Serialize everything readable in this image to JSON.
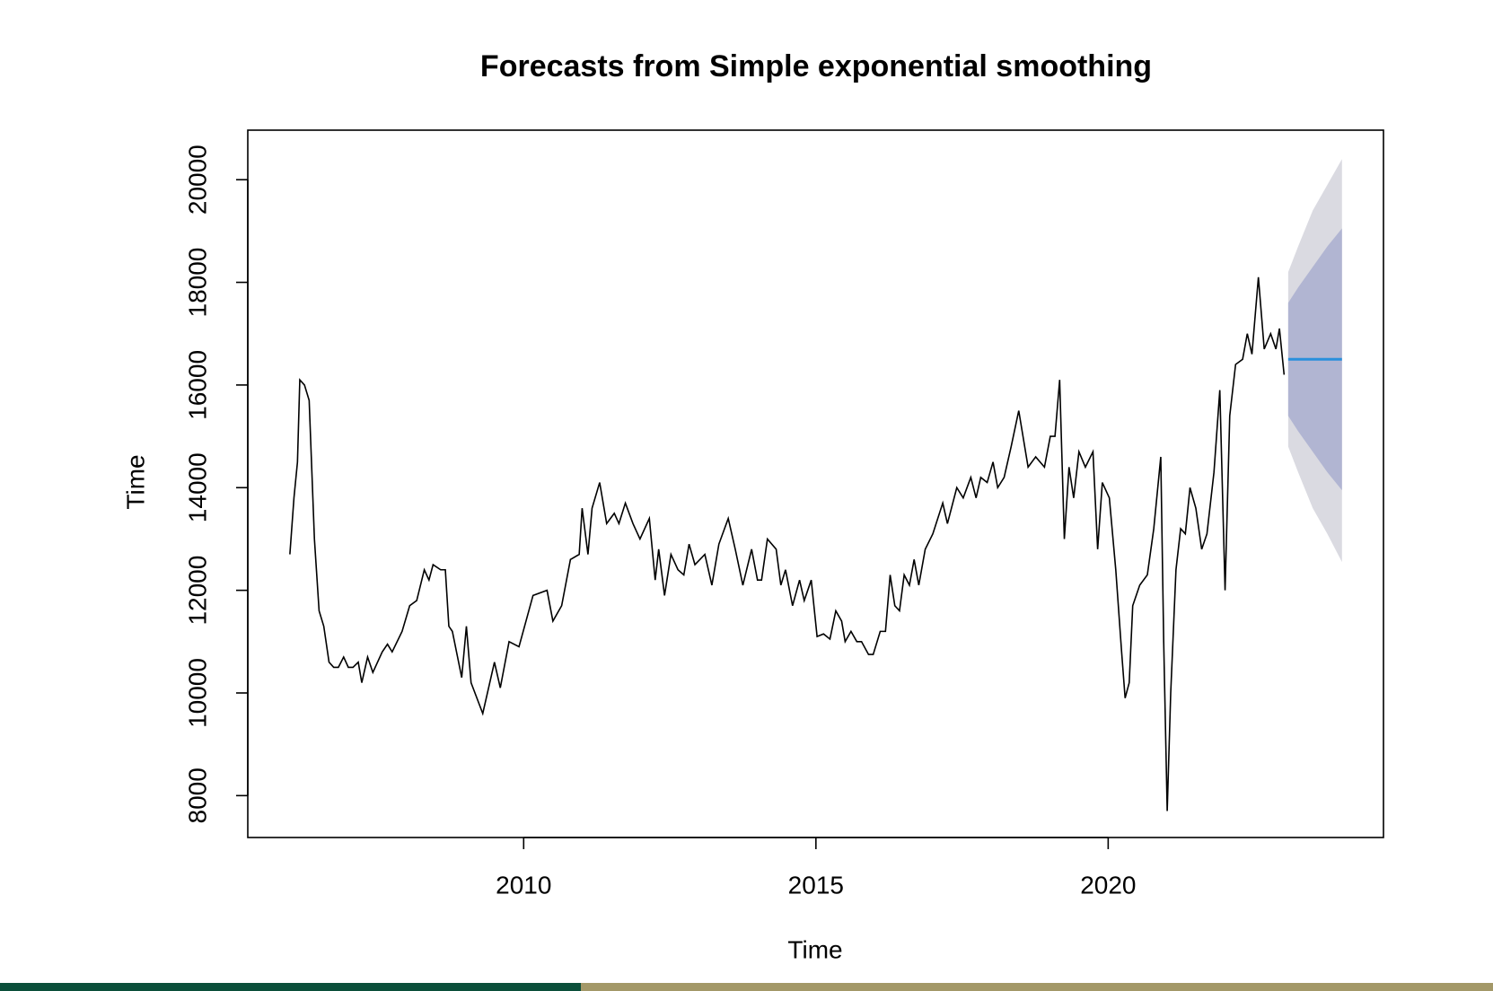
{
  "chart_data": {
    "type": "line",
    "title": "Forecasts from Simple exponential smoothing",
    "x_label": "Time",
    "y_label": "Time",
    "xlim": [
      2005.28,
      2024.71
    ],
    "ylim": [
      7184,
      20965
    ],
    "xticks": [
      2010,
      2015,
      2020
    ],
    "yticks": [
      8000,
      10000,
      12000,
      14000,
      16000,
      18000,
      20000
    ],
    "color": "#000000",
    "x": [
      2006.0,
      2006.07,
      2006.13,
      2006.17,
      2006.25,
      2006.33,
      2006.42,
      2006.5,
      2006.58,
      2006.67,
      2006.75,
      2006.83,
      2006.92,
      2007.0,
      2007.08,
      2007.17,
      2007.23,
      2007.33,
      2007.42,
      2007.58,
      2007.67,
      2007.75,
      2007.92,
      2008.05,
      2008.17,
      2008.3,
      2008.38,
      2008.45,
      2008.58,
      2008.66,
      2008.72,
      2008.78,
      2008.94,
      2009.02,
      2009.1,
      2009.3,
      2009.5,
      2009.6,
      2009.75,
      2009.92,
      2010.16,
      2010.4,
      2010.5,
      2010.65,
      2010.8,
      2010.95,
      2011.0,
      2011.1,
      2011.17,
      2011.3,
      2011.42,
      2011.55,
      2011.63,
      2011.74,
      2011.87,
      2011.99,
      2012.15,
      2012.25,
      2012.31,
      2012.41,
      2012.52,
      2012.64,
      2012.74,
      2012.83,
      2012.93,
      2013.1,
      2013.22,
      2013.34,
      2013.5,
      2013.62,
      2013.75,
      2013.9,
      2014.0,
      2014.07,
      2014.17,
      2014.32,
      2014.4,
      2014.48,
      2014.6,
      2014.72,
      2014.8,
      2014.92,
      2015.02,
      2015.13,
      2015.24,
      2015.34,
      2015.44,
      2015.5,
      2015.6,
      2015.7,
      2015.78,
      2015.9,
      2015.98,
      2016.1,
      2016.19,
      2016.27,
      2016.35,
      2016.43,
      2016.51,
      2016.6,
      2016.68,
      2016.76,
      2016.87,
      2017.0,
      2017.17,
      2017.25,
      2017.41,
      2017.52,
      2017.65,
      2017.74,
      2017.82,
      2017.93,
      2018.03,
      2018.11,
      2018.22,
      2018.34,
      2018.47,
      2018.63,
      2018.76,
      2018.91,
      2019.01,
      2019.09,
      2019.17,
      2019.25,
      2019.33,
      2019.41,
      2019.5,
      2019.61,
      2019.74,
      2019.82,
      2019.9,
      2020.02,
      2020.13,
      2020.23,
      2020.29,
      2020.36,
      2020.42,
      2020.54,
      2020.67,
      2020.78,
      2020.9,
      2020.95,
      2021.01,
      2021.07,
      2021.16,
      2021.24,
      2021.32,
      2021.4,
      2021.5,
      2021.6,
      2021.69,
      2021.81,
      2021.91,
      2022.0,
      2022.08,
      2022.18,
      2022.3,
      2022.38,
      2022.46,
      2022.57,
      2022.67,
      2022.78,
      2022.87,
      2022.93,
      2023.01
    ],
    "values": [
      12700,
      13800,
      14500,
      16100,
      16000,
      15700,
      13000,
      11600,
      11300,
      10600,
      10500,
      10500,
      10700,
      10500,
      10500,
      10600,
      10200,
      10700,
      10400,
      10800,
      10950,
      10800,
      11200,
      11700,
      11800,
      12400,
      12200,
      12500,
      12400,
      12400,
      11300,
      11200,
      10300,
      11300,
      10200,
      9600,
      10600,
      10100,
      11000,
      10900,
      11900,
      12000,
      11400,
      11700,
      12600,
      12700,
      13600,
      12700,
      13600,
      14100,
      13300,
      13500,
      13300,
      13700,
      13300,
      13000,
      13400,
      12200,
      12800,
      11900,
      12700,
      12400,
      12300,
      12900,
      12500,
      12700,
      12100,
      12900,
      13400,
      12800,
      12100,
      12800,
      12200,
      12200,
      13000,
      12800,
      12100,
      12400,
      11700,
      12200,
      11800,
      12200,
      11100,
      11150,
      11050,
      11600,
      11400,
      11000,
      11200,
      11000,
      11000,
      10750,
      10750,
      11200,
      11200,
      12300,
      11700,
      11600,
      12300,
      12100,
      12600,
      12100,
      12800,
      13100,
      13700,
      13300,
      14000,
      13800,
      14200,
      13800,
      14200,
      14100,
      14500,
      14000,
      14200,
      14800,
      15500,
      14400,
      14600,
      14400,
      15000,
      15000,
      16100,
      13000,
      14400,
      13800,
      14700,
      14400,
      14700,
      12800,
      14100,
      13800,
      12400,
      10800,
      9900,
      10200,
      11700,
      12100,
      12300,
      13200,
      14600,
      11000,
      7700,
      10000,
      12400,
      13200,
      13100,
      14000,
      13600,
      12800,
      13100,
      14300,
      15900,
      12000,
      15400,
      16400,
      16500,
      17000,
      16600,
      18100,
      16700,
      17000,
      16700,
      17100,
      16200
    ],
    "forecast": {
      "x": [
        2023.08,
        2023.25,
        2023.5,
        2023.75,
        2024.0
      ],
      "mean": [
        16500,
        16500,
        16500,
        16500,
        16500
      ],
      "hi80": [
        17600,
        17900,
        18300,
        18700,
        19050
      ],
      "lo80": [
        15400,
        15100,
        14700,
        14300,
        13950
      ],
      "hi95": [
        18200,
        18700,
        19400,
        19900,
        20400
      ],
      "lo95": [
        14800,
        14300,
        13600,
        13100,
        12550
      ],
      "mean_color": "#2a8fdc",
      "band80_color": "#b1b5d2",
      "band95_color": "#dadae1"
    }
  }
}
